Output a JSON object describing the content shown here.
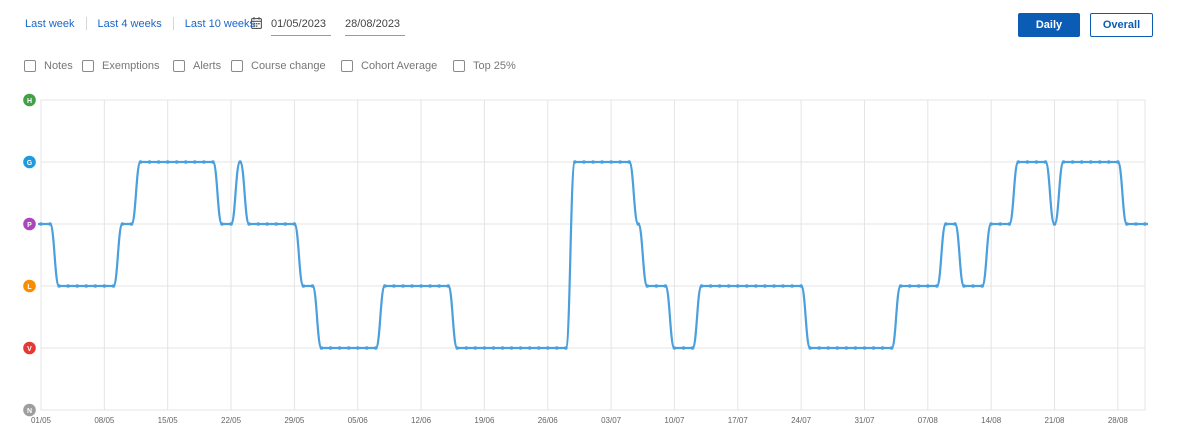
{
  "range_links": [
    "Last week",
    "Last 4 weeks",
    "Last 10 weeks"
  ],
  "date_range": {
    "start": "01/05/2023",
    "end": "28/08/2023"
  },
  "view_buttons": {
    "daily": "Daily",
    "overall": "Overall"
  },
  "filters": [
    "Notes",
    "Exemptions",
    "Alerts",
    "Course change",
    "Cohort Average",
    "Top 25%"
  ],
  "colors": {
    "accent": "#0b5cb5",
    "line": "#4a9fdd"
  },
  "chart_data": {
    "type": "line",
    "title": "",
    "xlabel": "",
    "ylabel": "",
    "x_range": [
      "01/05",
      "28/08"
    ],
    "x_ticks": [
      "01/05",
      "08/05",
      "15/05",
      "22/05",
      "29/05",
      "05/06",
      "12/06",
      "19/06",
      "26/06",
      "03/07",
      "10/07",
      "17/07",
      "24/07",
      "31/07",
      "07/08",
      "14/08",
      "21/08",
      "28/08"
    ],
    "y_levels": [
      {
        "label": "N",
        "value": 0,
        "color": "#9e9e9e"
      },
      {
        "label": "V",
        "value": 1,
        "color": "#e53935"
      },
      {
        "label": "L",
        "value": 2,
        "color": "#fb8c00"
      },
      {
        "label": "P",
        "value": 3,
        "color": "#ab47bc"
      },
      {
        "label": "G",
        "value": 4,
        "color": "#1e9be0"
      },
      {
        "label": "H",
        "value": 5,
        "color": "#43a047"
      }
    ],
    "grid": true,
    "legend": "none",
    "series": [
      {
        "values": [
          3,
          3,
          2,
          2,
          2,
          2,
          2,
          2,
          2,
          3,
          3,
          4,
          4,
          4,
          4,
          4,
          4,
          4,
          4,
          4,
          3,
          3,
          4,
          3,
          3,
          3,
          3,
          3,
          3,
          2,
          2,
          1,
          1,
          1,
          1,
          1,
          1,
          1,
          2,
          2,
          2,
          2,
          2,
          2,
          2,
          2,
          1,
          1,
          1,
          1,
          1,
          1,
          1,
          1,
          1,
          1,
          1,
          1,
          1,
          4,
          4,
          4,
          4,
          4,
          4,
          4,
          3,
          2,
          2,
          2,
          1,
          1,
          1,
          2,
          2,
          2,
          2,
          2,
          2,
          2,
          2,
          2,
          2,
          2,
          2,
          1,
          1,
          1,
          1,
          1,
          1,
          1,
          1,
          1,
          1,
          2,
          2,
          2,
          2,
          2,
          3,
          3,
          2,
          2,
          2,
          3,
          3,
          3,
          4,
          4,
          4,
          4,
          3,
          4,
          4,
          4,
          4,
          4,
          4,
          4,
          3,
          3,
          3
        ]
      }
    ]
  }
}
